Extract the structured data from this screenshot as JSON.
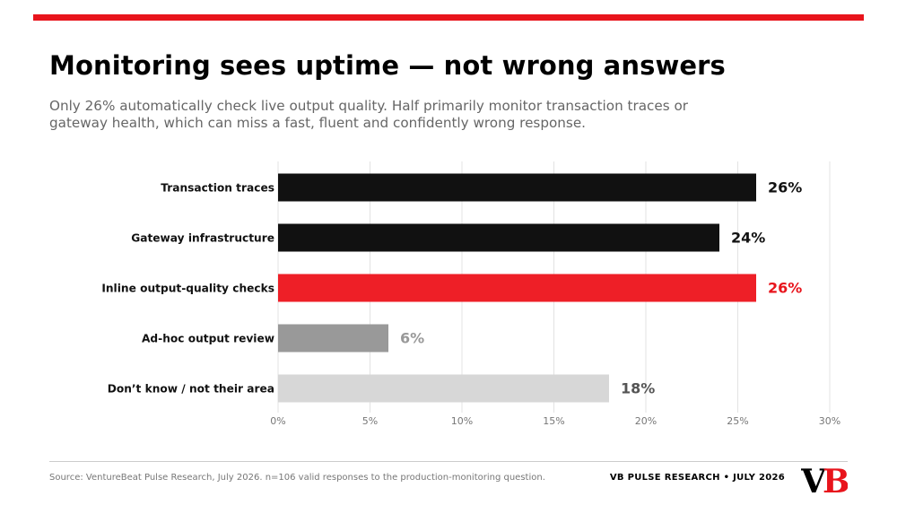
{
  "header": {
    "title": "Monitoring sees uptime — not wrong answers",
    "subtitle": "Only 26% automatically check live output quality. Half primarily monitor transaction traces or gateway health, which can miss a fast, fluent and confidently wrong response."
  },
  "colors": {
    "accent": "#e8141c",
    "dark": "#111111",
    "mid_gray": "#999999",
    "light_gray": "#d7d7d7"
  },
  "chart_data": {
    "type": "bar",
    "orientation": "horizontal",
    "title": "",
    "xlabel": "",
    "ylabel": "",
    "xlim": [
      0,
      30
    ],
    "x_ticks": [
      0,
      5,
      10,
      15,
      20,
      25,
      30
    ],
    "tick_format": "{v}%",
    "grid": "vertical",
    "legend": "none",
    "categories": [
      "Transaction traces",
      "Gateway infrastructure",
      "Inline output-quality checks",
      "Ad-hoc output review",
      "Don’t know / not their area"
    ],
    "values": [
      26,
      24,
      26,
      6,
      18
    ],
    "value_labels": [
      "26%",
      "24%",
      "26%",
      "6%",
      "18%"
    ],
    "bar_colors": [
      "#111111",
      "#111111",
      "#ee1f27",
      "#999999",
      "#d7d7d7"
    ],
    "label_colors": [
      "#111111",
      "#111111",
      "#e8141c",
      "#999999",
      "#555555"
    ]
  },
  "footer": {
    "source": "Source: VentureBeat Pulse Research, July 2026. n=106 valid responses to the production-monitoring question.",
    "brand": "VB PULSE RESEARCH  •  JULY 2026",
    "logo_v": "V",
    "logo_b": "B"
  }
}
